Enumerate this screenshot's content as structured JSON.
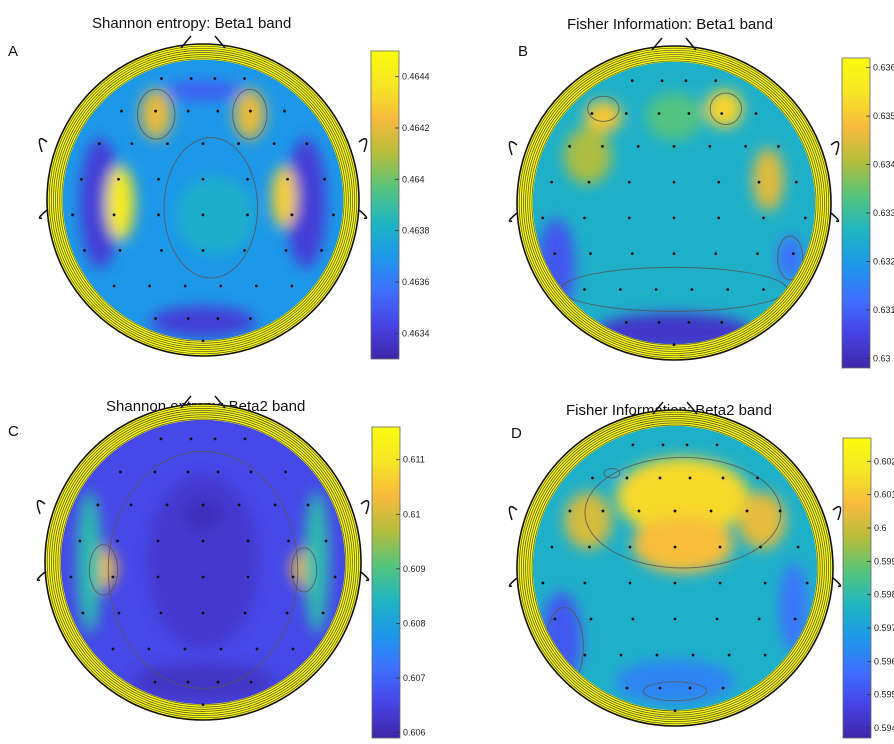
{
  "figure": {
    "colormap": [
      "#3e26a8",
      "#4743e5",
      "#3e70fe",
      "#1d98e9",
      "#1fb6c1",
      "#56c47c",
      "#b5bd3c",
      "#f8ba3d",
      "#f6e625",
      "#f9fb0e"
    ]
  },
  "chart_data": [
    {
      "type": "heatmap",
      "panel_label": "A",
      "title": "Shannon entropy: Beta1 band",
      "colorbar": {
        "min": 0.4633,
        "max": 0.4645,
        "ticks": [
          "0.4634",
          "0.4636",
          "0.4638",
          "0.464",
          "0.4642",
          "0.4644"
        ]
      },
      "levels": {
        "background": 0.4637,
        "outer_ring": 0.4645,
        "contour": 0.4638
      },
      "features": [
        {
          "name": "left-band",
          "value": 0.4634
        },
        {
          "name": "right-band",
          "value": 0.4634
        },
        {
          "name": "left-hot",
          "value": 0.4644
        },
        {
          "name": "right-hot",
          "value": 0.4643
        },
        {
          "name": "frontal-left-hot",
          "value": 0.4642
        },
        {
          "name": "frontal-right-hot",
          "value": 0.4642
        },
        {
          "name": "frontal-cold",
          "value": 0.4635
        },
        {
          "name": "posterior-cold",
          "value": 0.4634
        },
        {
          "name": "central-warm",
          "value": 0.4638
        }
      ]
    },
    {
      "type": "heatmap",
      "panel_label": "B",
      "title": "Fisher Information: Beta1 band",
      "colorbar": {
        "min": 0.6298,
        "max": 0.6362,
        "ticks": [
          "0.63",
          "0.631",
          "0.632",
          "0.633",
          "0.634",
          "0.635",
          "0.636"
        ]
      },
      "levels": {
        "background": 0.6325,
        "outer_ring": 0.6361,
        "contour": 0.6328
      },
      "features": [
        {
          "name": "frontal-left-hot",
          "value": 0.635
        },
        {
          "name": "frontal-right-hot",
          "value": 0.6352
        },
        {
          "name": "left-warm",
          "value": 0.634
        },
        {
          "name": "right-warm",
          "value": 0.6345
        },
        {
          "name": "posterior-cold",
          "value": 0.6302
        },
        {
          "name": "left-cold",
          "value": 0.6308
        },
        {
          "name": "right-cold",
          "value": 0.6312
        },
        {
          "name": "frontal-mid",
          "value": 0.6333
        }
      ]
    },
    {
      "type": "heatmap",
      "panel_label": "C",
      "title": "Shannon entropy: Beta2 band",
      "colorbar": {
        "min": 0.6059,
        "max": 0.6116,
        "ticks": [
          "0.606",
          "0.607",
          "0.608",
          "0.609",
          "0.61",
          "0.611"
        ]
      },
      "levels": {
        "background": 0.6066,
        "outer_ring": 0.6115,
        "contour": 0.6078
      },
      "features": [
        {
          "name": "left-hot",
          "value": 0.6104
        },
        {
          "name": "right-hot",
          "value": 0.6102
        },
        {
          "name": "left-rim",
          "value": 0.6086
        },
        {
          "name": "right-rim",
          "value": 0.6086
        },
        {
          "name": "central-cold",
          "value": 0.6063
        },
        {
          "name": "posterior-cold",
          "value": 0.6062
        },
        {
          "name": "center-dip",
          "value": 0.6061
        }
      ]
    },
    {
      "type": "heatmap",
      "panel_label": "D",
      "title": "Fisher Information: Beta2 band",
      "colorbar": {
        "min": 0.5937,
        "max": 0.6027,
        "ticks": [
          "0.594",
          "0.595",
          "0.596",
          "0.597",
          "0.598",
          "0.599",
          "0.6",
          "0.601",
          "0.602"
        ]
      },
      "levels": {
        "background": 0.5975,
        "outer_ring": 0.6025,
        "contour": 0.5985
      },
      "features": [
        {
          "name": "frontal-hot",
          "value": 0.6014
        },
        {
          "name": "central-hot",
          "value": 0.6008
        },
        {
          "name": "left-frontal-warm",
          "value": 0.6002
        },
        {
          "name": "right-frontal-warm",
          "value": 0.6004
        },
        {
          "name": "left-temporal-cold",
          "value": 0.5952
        },
        {
          "name": "right-temporal-cold",
          "value": 0.5958
        },
        {
          "name": "posterior-cold",
          "value": 0.5962
        },
        {
          "name": "frontal-small-cold",
          "value": 0.5975
        }
      ]
    }
  ]
}
